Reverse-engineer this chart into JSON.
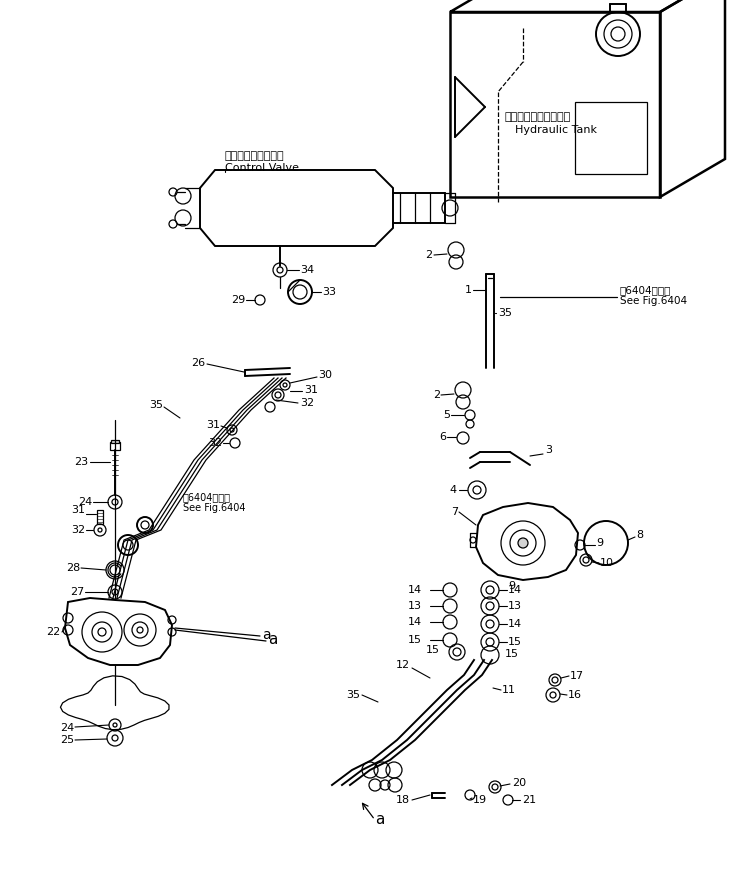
{
  "bg_color": "#ffffff",
  "fig_width": 7.53,
  "fig_height": 8.86,
  "dpi": 100,
  "labels": {
    "hydraulic_tank_jp": "ハイドロリックタンク",
    "hydraulic_tank_en": "Hydraulic Tank",
    "control_valve_jp": "コントロールバルブ",
    "control_valve_en": "Control Valve",
    "see_fig_jp": "第6404図参照",
    "see_fig_en": "See Fig.6404",
    "see_fig_jp2": "第6404図参照",
    "see_fig_en2": "See Fig.6404"
  }
}
